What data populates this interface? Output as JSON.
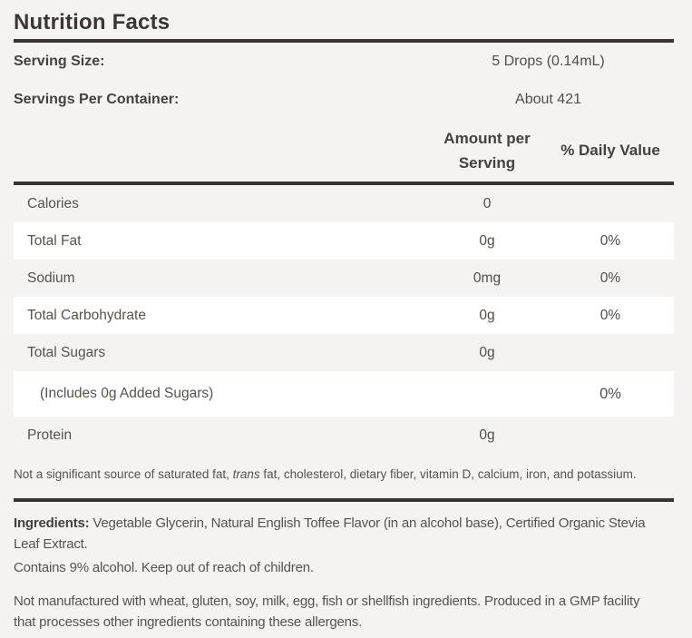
{
  "panel": {
    "title": "Nutrition Facts"
  },
  "serving_info": {
    "serving_size": {
      "label": "Serving Size:",
      "value": "5 Drops (0.14mL)"
    },
    "servings_per_container": {
      "label": "Servings Per Container:",
      "value": "About 421"
    }
  },
  "table": {
    "headers": {
      "amount": "Amount per Serving",
      "daily_value": "% Daily Value"
    },
    "rows": [
      {
        "label": "Calories",
        "amount": "0",
        "daily_value": ""
      },
      {
        "label": "Total Fat",
        "amount": "0g",
        "daily_value": "0%"
      },
      {
        "label": "Sodium",
        "amount": "0mg",
        "daily_value": "0%"
      },
      {
        "label": "Total Carbohydrate",
        "amount": "0g",
        "daily_value": "0%"
      },
      {
        "label": "Total Sugars",
        "amount": "0g",
        "daily_value": ""
      },
      {
        "label": "(Includes 0g Added Sugars)",
        "amount": "",
        "daily_value": "0%"
      },
      {
        "label": "Protein",
        "amount": "0g",
        "daily_value": ""
      }
    ],
    "footnote": {
      "pre": "Not a significant source of saturated fat, ",
      "italic": "trans",
      "post": " fat, cholesterol, dietary fiber, vitamin D, calcium, iron, and potassium."
    }
  },
  "details": {
    "ingredients": {
      "label": "Ingredients:",
      "line1": " Vegetable Glycerin, Natural English Toffee Flavor (in an alcohol base), Certified Organic Stevia",
      "line2": "Leaf Extract."
    },
    "alcohol_warning": "Contains 9% alcohol. Keep out of reach of children.",
    "allergen_statement": {
      "line1": "Not manufactured with wheat, gluten, soy, milk, egg, fish or shellfish ingredients. Produced in a GMP facility",
      "line2": "that processes other ingredients containing these allergens."
    }
  },
  "colors": {
    "page_background": "#f4f3f1",
    "row_highlight": "#ffffff",
    "divider": "#393431",
    "text_heading": "#3b3632",
    "text_body": "#57524c"
  }
}
